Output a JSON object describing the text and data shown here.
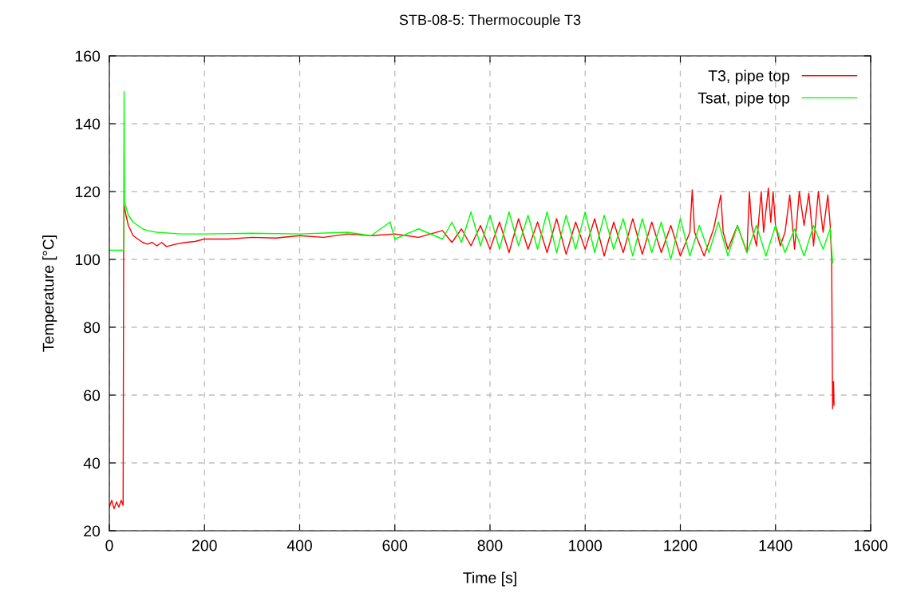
{
  "chart_data": {
    "type": "line",
    "title": "STB-08-5: Thermocouple T3",
    "xlabel": "Time [s]",
    "ylabel": "Temperature [°C]",
    "xlim": [
      0,
      1600
    ],
    "xticks": [
      0,
      200,
      400,
      600,
      800,
      1000,
      1200,
      1400,
      1600
    ],
    "ylim": [
      20,
      160
    ],
    "yticks": [
      20,
      40,
      60,
      80,
      100,
      120,
      140,
      160
    ],
    "grid": true,
    "legend": "top right",
    "marker": "none",
    "line_style": "solid",
    "series": [
      {
        "name": "T3, pipe top",
        "color": "#ff0000",
        "x": [
          0,
          5,
          10,
          15,
          20,
          25,
          29,
          30,
          31,
          35,
          40,
          50,
          60,
          70,
          80,
          90,
          100,
          110,
          120,
          140,
          160,
          180,
          200,
          250,
          300,
          350,
          400,
          450,
          500,
          550,
          600,
          650,
          700,
          720,
          740,
          760,
          780,
          800,
          820,
          840,
          860,
          880,
          900,
          920,
          940,
          960,
          980,
          1000,
          1020,
          1040,
          1060,
          1080,
          1100,
          1120,
          1140,
          1160,
          1180,
          1200,
          1220,
          1225,
          1230,
          1250,
          1270,
          1285,
          1290,
          1300,
          1320,
          1340,
          1345,
          1350,
          1360,
          1370,
          1375,
          1385,
          1390,
          1395,
          1400,
          1410,
          1420,
          1430,
          1440,
          1450,
          1460,
          1470,
          1480,
          1490,
          1500,
          1510,
          1515,
          1518,
          1520,
          1522,
          1523
        ],
        "values": [
          27,
          29,
          26.5,
          28.5,
          27,
          29,
          27.5,
          100,
          116,
          113,
          110,
          107,
          106,
          105,
          104.5,
          105,
          104,
          105,
          103.8,
          104.5,
          105,
          105.3,
          106,
          106,
          106.5,
          106.3,
          107,
          106.5,
          107.5,
          107,
          107.5,
          106.5,
          108.5,
          105,
          109,
          104,
          110,
          103,
          111,
          102,
          112,
          103,
          111,
          102,
          112,
          101.5,
          111,
          103,
          112,
          101,
          111,
          102,
          112,
          101.5,
          111,
          102,
          110,
          101,
          108,
          120.5,
          108,
          101,
          109,
          119,
          108,
          103,
          110,
          102,
          120,
          110,
          104,
          120,
          108,
          121,
          111,
          120,
          110,
          104,
          108,
          119,
          103,
          120,
          110,
          119.5,
          104,
          120,
          108,
          119,
          110,
          100,
          56,
          64,
          57
        ]
      },
      {
        "name": "Tsat, pipe top",
        "color": "#00ff00",
        "x": [
          0,
          30,
          31,
          32,
          35,
          40,
          50,
          60,
          70,
          80,
          100,
          150,
          200,
          300,
          400,
          500,
          550,
          590,
          600,
          650,
          700,
          720,
          740,
          760,
          780,
          800,
          820,
          840,
          860,
          880,
          900,
          920,
          940,
          960,
          980,
          1000,
          1020,
          1040,
          1060,
          1080,
          1100,
          1120,
          1140,
          1160,
          1180,
          1200,
          1220,
          1240,
          1260,
          1280,
          1300,
          1320,
          1340,
          1360,
          1380,
          1400,
          1420,
          1440,
          1460,
          1480,
          1500,
          1515,
          1520
        ],
        "values": [
          102.7,
          102.7,
          149.5,
          117,
          115.5,
          113,
          111,
          110,
          109,
          108.5,
          108,
          107.5,
          107.5,
          107.7,
          107.5,
          108,
          107,
          111,
          106,
          109,
          106,
          111,
          105,
          114,
          104,
          113,
          103,
          114,
          104,
          113,
          103,
          114,
          102,
          113,
          103,
          114,
          102,
          113,
          103,
          112,
          101,
          112,
          102,
          111,
          100,
          112,
          101,
          110,
          102,
          111,
          101,
          110,
          102,
          110,
          101,
          110,
          102,
          109,
          101,
          110,
          103,
          109,
          99
        ]
      }
    ]
  }
}
